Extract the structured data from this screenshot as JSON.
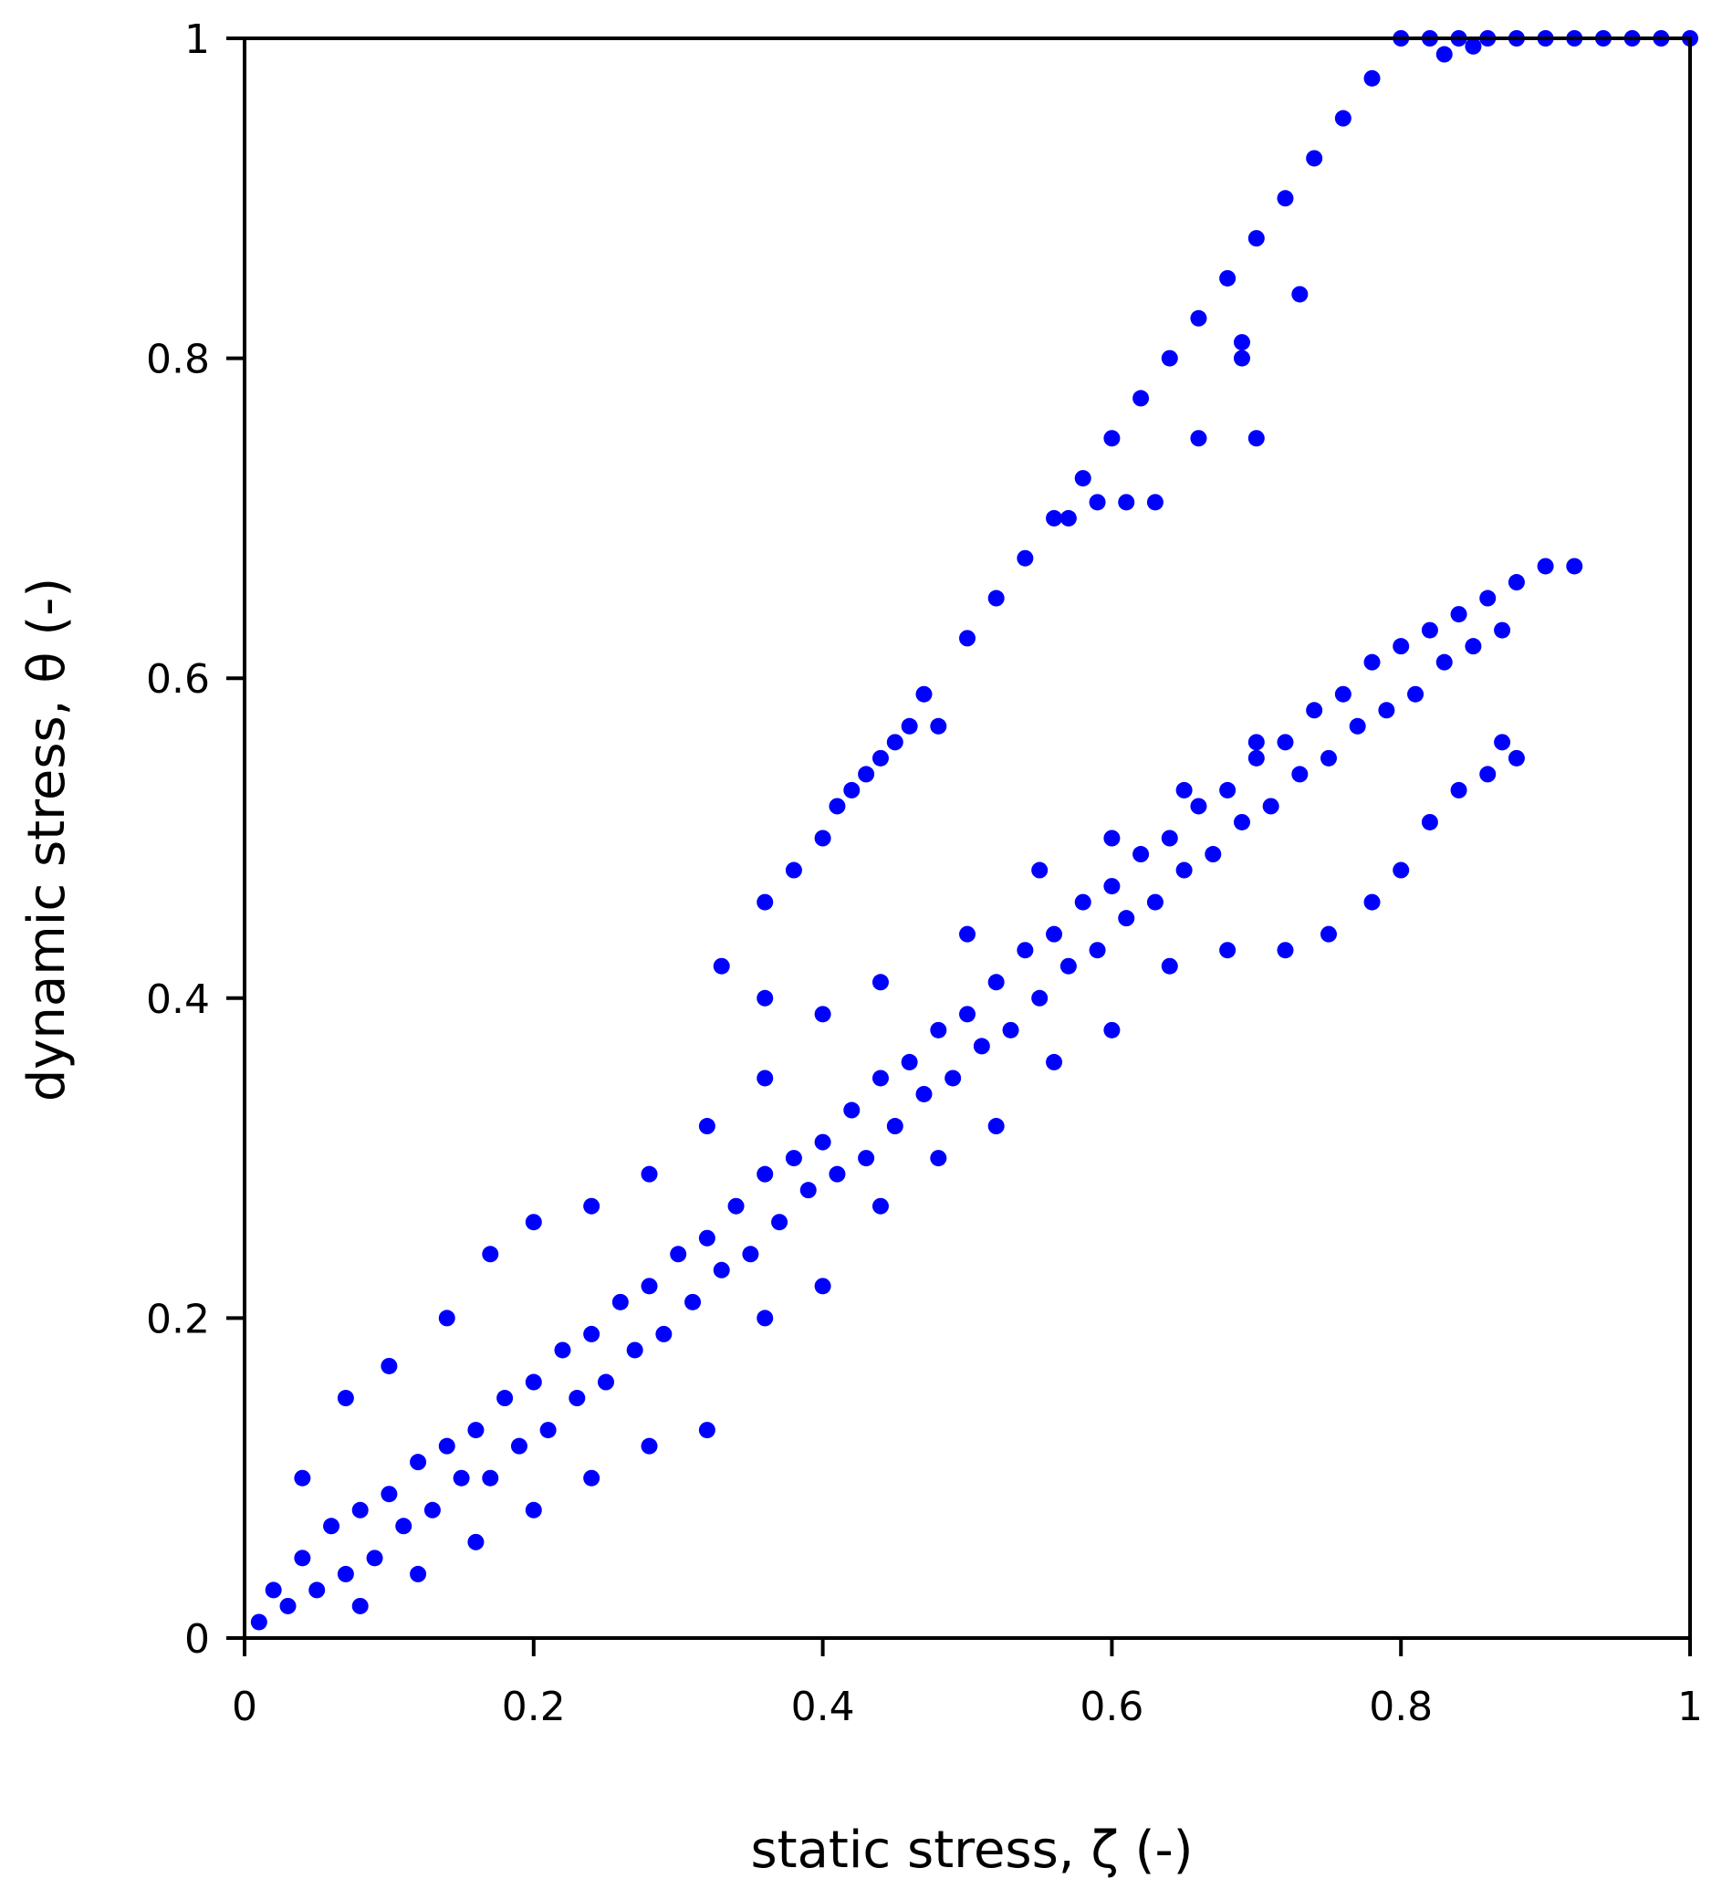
{
  "chart_data": {
    "type": "scatter",
    "title": "",
    "xlabel": "static stress, ζ (-)",
    "ylabel": "dynamic stress, θ (-)",
    "xlim": [
      0,
      1
    ],
    "ylim": [
      0,
      1
    ],
    "xticks": [
      "0",
      "0.2",
      "0.4",
      "0.6",
      "0.8",
      "1"
    ],
    "yticks": [
      "0",
      "0.2",
      "0.4",
      "0.6",
      "0.8",
      "1"
    ],
    "xtick_values": [
      0,
      0.2,
      0.4,
      0.6,
      0.8,
      1
    ],
    "ytick_values": [
      0,
      0.2,
      0.4,
      0.6,
      0.8,
      1
    ],
    "grid": false,
    "legend": "none",
    "marker_color": "#0000ff",
    "series": [
      {
        "description_of_shape": "dense cloud along y ≈ 0.72x",
        "points": [
          [
            0.01,
            0.01
          ],
          [
            0.02,
            0.03
          ],
          [
            0.03,
            0.02
          ],
          [
            0.04,
            0.05
          ],
          [
            0.05,
            0.03
          ],
          [
            0.06,
            0.07
          ],
          [
            0.07,
            0.04
          ],
          [
            0.08,
            0.08
          ],
          [
            0.09,
            0.05
          ],
          [
            0.1,
            0.09
          ],
          [
            0.11,
            0.07
          ],
          [
            0.12,
            0.11
          ],
          [
            0.13,
            0.08
          ],
          [
            0.14,
            0.12
          ],
          [
            0.15,
            0.1
          ],
          [
            0.16,
            0.13
          ],
          [
            0.17,
            0.1
          ],
          [
            0.18,
            0.15
          ],
          [
            0.19,
            0.12
          ],
          [
            0.2,
            0.16
          ],
          [
            0.21,
            0.13
          ],
          [
            0.22,
            0.18
          ],
          [
            0.23,
            0.15
          ],
          [
            0.24,
            0.19
          ],
          [
            0.25,
            0.16
          ],
          [
            0.26,
            0.21
          ],
          [
            0.27,
            0.18
          ],
          [
            0.28,
            0.22
          ],
          [
            0.29,
            0.19
          ],
          [
            0.3,
            0.24
          ],
          [
            0.31,
            0.21
          ],
          [
            0.32,
            0.25
          ],
          [
            0.33,
            0.23
          ],
          [
            0.34,
            0.27
          ],
          [
            0.35,
            0.24
          ],
          [
            0.36,
            0.29
          ],
          [
            0.37,
            0.26
          ],
          [
            0.38,
            0.3
          ],
          [
            0.39,
            0.28
          ],
          [
            0.4,
            0.31
          ],
          [
            0.41,
            0.29
          ],
          [
            0.42,
            0.33
          ],
          [
            0.43,
            0.3
          ],
          [
            0.44,
            0.35
          ],
          [
            0.45,
            0.32
          ],
          [
            0.46,
            0.36
          ],
          [
            0.47,
            0.34
          ],
          [
            0.48,
            0.38
          ],
          [
            0.49,
            0.35
          ],
          [
            0.5,
            0.39
          ],
          [
            0.51,
            0.37
          ],
          [
            0.52,
            0.41
          ],
          [
            0.53,
            0.38
          ],
          [
            0.54,
            0.43
          ],
          [
            0.55,
            0.4
          ],
          [
            0.56,
            0.44
          ],
          [
            0.57,
            0.42
          ],
          [
            0.58,
            0.46
          ],
          [
            0.59,
            0.43
          ],
          [
            0.6,
            0.47
          ],
          [
            0.61,
            0.45
          ],
          [
            0.62,
            0.49
          ],
          [
            0.63,
            0.46
          ],
          [
            0.64,
            0.5
          ],
          [
            0.65,
            0.48
          ],
          [
            0.66,
            0.52
          ],
          [
            0.67,
            0.49
          ],
          [
            0.68,
            0.53
          ],
          [
            0.69,
            0.51
          ],
          [
            0.7,
            0.55
          ],
          [
            0.71,
            0.52
          ],
          [
            0.72,
            0.56
          ],
          [
            0.73,
            0.54
          ],
          [
            0.74,
            0.58
          ],
          [
            0.75,
            0.55
          ],
          [
            0.76,
            0.59
          ],
          [
            0.77,
            0.57
          ],
          [
            0.78,
            0.61
          ],
          [
            0.79,
            0.58
          ],
          [
            0.8,
            0.62
          ],
          [
            0.81,
            0.59
          ],
          [
            0.82,
            0.63
          ],
          [
            0.83,
            0.61
          ],
          [
            0.84,
            0.64
          ],
          [
            0.85,
            0.62
          ],
          [
            0.86,
            0.65
          ],
          [
            0.87,
            0.63
          ],
          [
            0.88,
            0.66
          ],
          [
            0.9,
            0.67
          ],
          [
            0.92,
            0.67
          ],
          [
            0.04,
            0.1
          ],
          [
            0.07,
            0.15
          ],
          [
            0.1,
            0.17
          ],
          [
            0.14,
            0.2
          ],
          [
            0.17,
            0.24
          ],
          [
            0.2,
            0.26
          ],
          [
            0.24,
            0.27
          ],
          [
            0.28,
            0.29
          ],
          [
            0.32,
            0.32
          ],
          [
            0.36,
            0.35
          ],
          [
            0.4,
            0.39
          ],
          [
            0.44,
            0.41
          ],
          [
            0.5,
            0.44
          ],
          [
            0.55,
            0.48
          ],
          [
            0.6,
            0.5
          ],
          [
            0.65,
            0.53
          ],
          [
            0.7,
            0.56
          ],
          [
            0.08,
            0.02
          ],
          [
            0.12,
            0.04
          ],
          [
            0.16,
            0.06
          ],
          [
            0.2,
            0.08
          ],
          [
            0.24,
            0.1
          ],
          [
            0.28,
            0.12
          ],
          [
            0.32,
            0.13
          ],
          [
            0.36,
            0.2
          ],
          [
            0.4,
            0.22
          ],
          [
            0.44,
            0.27
          ],
          [
            0.48,
            0.3
          ],
          [
            0.52,
            0.32
          ],
          [
            0.56,
            0.36
          ],
          [
            0.6,
            0.38
          ],
          [
            0.64,
            0.42
          ],
          [
            0.68,
            0.43
          ],
          [
            0.72,
            0.43
          ],
          [
            0.75,
            0.44
          ],
          [
            0.78,
            0.46
          ],
          [
            0.8,
            0.48
          ],
          [
            0.82,
            0.51
          ],
          [
            0.84,
            0.53
          ],
          [
            0.86,
            0.54
          ],
          [
            0.87,
            0.56
          ],
          [
            0.88,
            0.55
          ]
        ]
      },
      {
        "description_of_shape": "saturation branch along y = 1.25x, capped at 1",
        "points": [
          [
            0.33,
            0.42
          ],
          [
            0.36,
            0.4
          ],
          [
            0.36,
            0.46
          ],
          [
            0.38,
            0.48
          ],
          [
            0.4,
            0.5
          ],
          [
            0.41,
            0.52
          ],
          [
            0.42,
            0.53
          ],
          [
            0.43,
            0.54
          ],
          [
            0.44,
            0.55
          ],
          [
            0.45,
            0.56
          ],
          [
            0.46,
            0.57
          ],
          [
            0.47,
            0.59
          ],
          [
            0.48,
            0.57
          ],
          [
            0.5,
            0.625
          ],
          [
            0.52,
            0.65
          ],
          [
            0.54,
            0.675
          ],
          [
            0.56,
            0.7
          ],
          [
            0.58,
            0.725
          ],
          [
            0.6,
            0.75
          ],
          [
            0.62,
            0.775
          ],
          [
            0.64,
            0.8
          ],
          [
            0.66,
            0.825
          ],
          [
            0.68,
            0.85
          ],
          [
            0.7,
            0.875
          ],
          [
            0.72,
            0.9
          ],
          [
            0.74,
            0.925
          ],
          [
            0.76,
            0.95
          ],
          [
            0.78,
            0.975
          ],
          [
            0.8,
            1.0
          ],
          [
            0.82,
            1.0
          ],
          [
            0.84,
            1.0
          ],
          [
            0.86,
            1.0
          ],
          [
            0.88,
            1.0
          ],
          [
            0.9,
            1.0
          ],
          [
            0.92,
            1.0
          ],
          [
            0.94,
            1.0
          ],
          [
            0.96,
            1.0
          ],
          [
            0.98,
            1.0
          ],
          [
            1.0,
            1.0
          ],
          [
            0.57,
            0.7
          ],
          [
            0.59,
            0.71
          ],
          [
            0.61,
            0.71
          ],
          [
            0.63,
            0.71
          ],
          [
            0.66,
            0.75
          ],
          [
            0.69,
            0.81
          ],
          [
            0.69,
            0.8
          ],
          [
            0.7,
            0.75
          ],
          [
            0.73,
            0.84
          ],
          [
            0.83,
            0.99
          ],
          [
            0.85,
            0.995
          ]
        ]
      }
    ]
  }
}
